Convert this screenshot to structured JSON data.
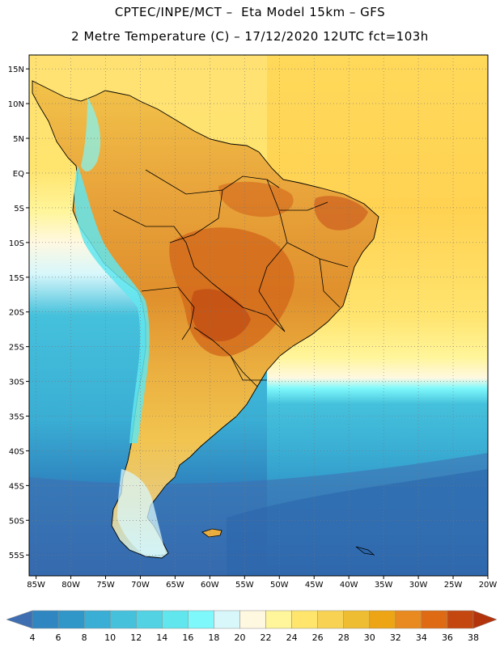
{
  "title": {
    "line1": "CPTEC/INPE/MCT –  Eta Model 15km – GFS",
    "line2": "2 Metre Temperature (C) – 17/12/2020 12UTC fct=103h"
  },
  "map": {
    "lon_range": [
      -86,
      -20
    ],
    "lat_range": [
      -58,
      17
    ],
    "lat_ticks": [
      {
        "value": 15,
        "label": "15N"
      },
      {
        "value": 10,
        "label": "10N"
      },
      {
        "value": 5,
        "label": "5N"
      },
      {
        "value": 0,
        "label": "EQ"
      },
      {
        "value": -5,
        "label": "5S"
      },
      {
        "value": -10,
        "label": "10S"
      },
      {
        "value": -15,
        "label": "15S"
      },
      {
        "value": -20,
        "label": "20S"
      },
      {
        "value": -25,
        "label": "25S"
      },
      {
        "value": -30,
        "label": "30S"
      },
      {
        "value": -35,
        "label": "35S"
      },
      {
        "value": -40,
        "label": "40S"
      },
      {
        "value": -45,
        "label": "45S"
      },
      {
        "value": -50,
        "label": "50S"
      },
      {
        "value": -55,
        "label": "55S"
      }
    ],
    "lon_ticks": [
      {
        "value": -85,
        "label": "85W"
      },
      {
        "value": -80,
        "label": "80W"
      },
      {
        "value": -75,
        "label": "75W"
      },
      {
        "value": -70,
        "label": "70W"
      },
      {
        "value": -65,
        "label": "65W"
      },
      {
        "value": -60,
        "label": "60W"
      },
      {
        "value": -55,
        "label": "55W"
      },
      {
        "value": -50,
        "label": "50W"
      },
      {
        "value": -45,
        "label": "45W"
      },
      {
        "value": -40,
        "label": "40W"
      },
      {
        "value": -35,
        "label": "35W"
      },
      {
        "value": -30,
        "label": "30W"
      },
      {
        "value": -25,
        "label": "25W"
      },
      {
        "value": -20,
        "label": "20W"
      }
    ]
  },
  "colorbar": {
    "labels": [
      "4",
      "6",
      "8",
      "10",
      "12",
      "14",
      "16",
      "18",
      "20",
      "22",
      "24",
      "26",
      "28",
      "30",
      "32",
      "34",
      "36",
      "38"
    ],
    "colors": [
      "#3f6eb1",
      "#2f86c0",
      "#3196c8",
      "#3aaed4",
      "#45c1dc",
      "#52d2e2",
      "#62e6ee",
      "#7ef8fb",
      "#d8f7fb",
      "#fff8e1",
      "#fff59a",
      "#ffe56c",
      "#f8d353",
      "#efbd32",
      "#eda515",
      "#e88a1f",
      "#de6a13",
      "#c4470f",
      "#b3330c"
    ]
  }
}
